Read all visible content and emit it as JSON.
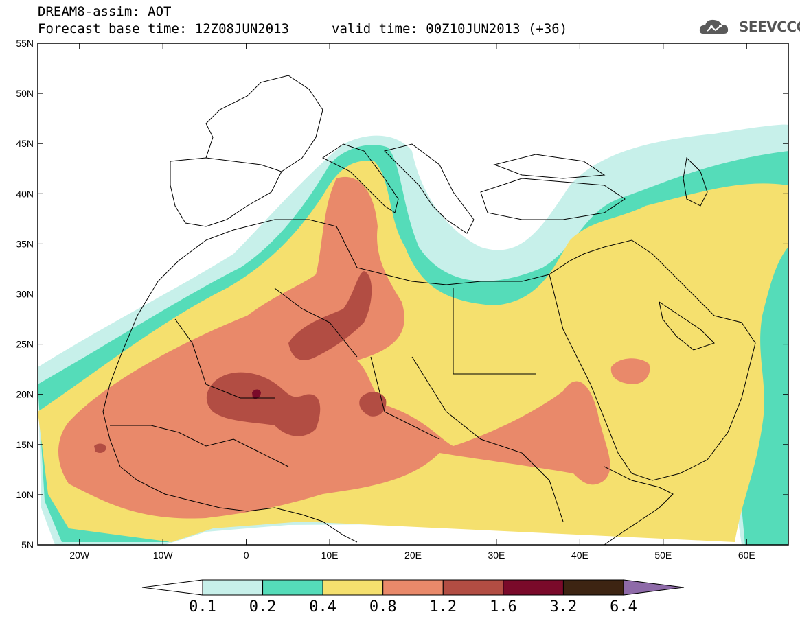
{
  "header": {
    "title": "DREAM8-assim: AOT",
    "base_time": "Forecast base time: 12Z08JUN2013",
    "valid_time": "valid time: 00Z10JUN2013 (+36)",
    "brand": "SEEVCCC"
  },
  "map": {
    "lon_range": [
      -25,
      65
    ],
    "lat_range": [
      5,
      55
    ],
    "lat_labels": [
      "55N",
      "50N",
      "45N",
      "40N",
      "35N",
      "30N",
      "25N",
      "20N",
      "15N",
      "10N",
      "5N"
    ],
    "lon_labels": [
      "20W",
      "10W",
      "0",
      "10E",
      "20E",
      "30E",
      "40E",
      "50E",
      "60E"
    ]
  },
  "colorbar": {
    "labels": [
      "0.1",
      "0.2",
      "0.4",
      "0.8",
      "1.2",
      "1.6",
      "3.2",
      "6.4"
    ],
    "colors": [
      "#ffffff",
      "#c7f0ea",
      "#55dcb9",
      "#f5e06e",
      "#e9896a",
      "#b24d43",
      "#7a0a2a",
      "#3d2412",
      "#8e6aa8"
    ]
  },
  "colors": {
    "c1": "#c7f0ea",
    "c2": "#55dcb9",
    "c3": "#f5e06e",
    "c4": "#e9896a",
    "c5": "#b24d43",
    "c6": "#7a0a2a"
  }
}
